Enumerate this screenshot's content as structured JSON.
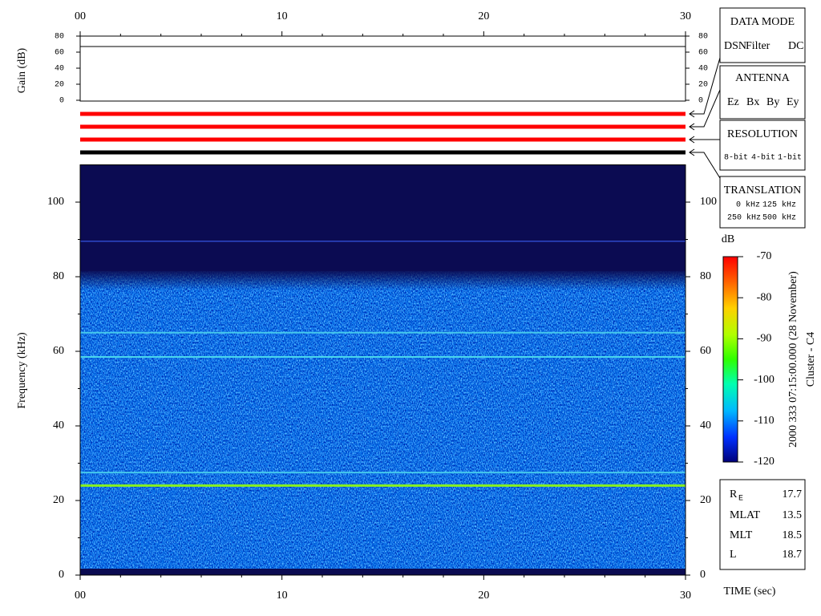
{
  "chart_data": [
    {
      "type": "spectrogram",
      "ylabel": "Frequency (kHz)",
      "xlabel": "TIME (sec)",
      "xlim": [
        0,
        30
      ],
      "xticks": [
        {
          "value": 0,
          "label": "00"
        },
        10,
        20,
        30
      ],
      "xminorticks": [
        2,
        4,
        6,
        8,
        12,
        14,
        16,
        18,
        22,
        24,
        26,
        28
      ],
      "ylim": [
        0,
        110
      ],
      "yticks": [
        0,
        20,
        40,
        60,
        80,
        100
      ],
      "yminorticks": [
        10,
        30,
        50,
        70,
        90
      ],
      "background": "#0b0b52",
      "bands": [
        {
          "frequency": 89.5,
          "color": "#3a5cf0"
        },
        {
          "frequency": 65,
          "color": "#45c8ec"
        },
        {
          "frequency": 58.5,
          "color": "#4ad6ec"
        },
        {
          "frequency": 27.5,
          "color": "#45c8ec"
        },
        {
          "frequency": 24,
          "color": "#86f020"
        }
      ],
      "colorbar": {
        "label": "dB",
        "lim": [
          -120,
          -70
        ],
        "ticks": [
          -70,
          -80,
          -90,
          -100,
          -110,
          -120
        ]
      }
    },
    {
      "type": "line",
      "ylabel": "Gain (dB)",
      "xlim": [
        0,
        30
      ],
      "ylim": [
        0,
        80
      ],
      "yticks": [
        0,
        20,
        40,
        60,
        80
      ],
      "x": [
        0,
        30
      ],
      "values": [
        67,
        67
      ],
      "color": "#000000"
    }
  ],
  "indicator_lines": [
    "#ff0000",
    "#ff0000",
    "#ff0000",
    "#000000"
  ],
  "data_mode": {
    "title": "DATA MODE",
    "items": [
      {
        "text": "DSN",
        "color": "#ff0000"
      },
      {
        "text": "Filter",
        "color": "#00cc00"
      },
      {
        "text": "DC",
        "color": "#0000ff"
      }
    ]
  },
  "antenna": {
    "title": "ANTENNA",
    "items": [
      {
        "text": "Ez",
        "color": "#ff0000"
      },
      {
        "text": "Bx",
        "color": "#00cc00"
      },
      {
        "text": "By",
        "color": "#0000ff"
      },
      {
        "text": "Ey",
        "color": "#000000"
      }
    ]
  },
  "resolution": {
    "title": "RESOLUTION",
    "items": [
      {
        "text": "8-bit",
        "color": "#ff0000"
      },
      {
        "text": "4-bit",
        "color": "#00cc00"
      },
      {
        "text": "1-bit",
        "color": "#0000ff"
      }
    ]
  },
  "translation": {
    "title": "TRANSLATION",
    "items": [
      {
        "text": "0 kHz",
        "color": "#ff0000"
      },
      {
        "text": "125 kHz",
        "color": "#00cc00"
      },
      {
        "text": "250 kHz",
        "color": "#0000ff"
      },
      {
        "text": "500 kHz",
        "color": "#000000"
      }
    ]
  },
  "orbit": [
    {
      "label": "R",
      "subscript": "E",
      "value": 17.7
    },
    {
      "label": "MLAT",
      "value": 13.5
    },
    {
      "label": "MLT",
      "value": 18.5
    },
    {
      "label": "L",
      "value": 18.7
    }
  ],
  "caption": [
    "2000 333 07:15:00.000 (28 November)",
    "Cluster - C4"
  ]
}
